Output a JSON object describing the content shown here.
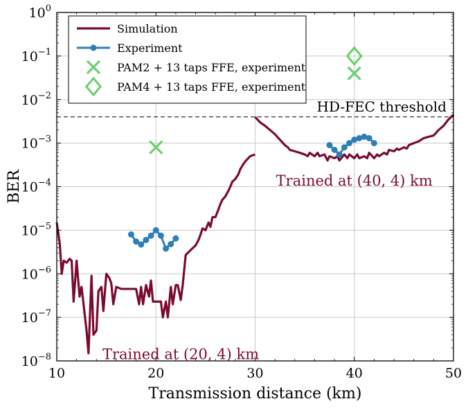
{
  "chart_data": {
    "type": "line",
    "xlabel": "Transmission distance (km)",
    "ylabel": "BER",
    "xlim": [
      10,
      50
    ],
    "ylim_exponent": [
      -8,
      0
    ],
    "yscale": "log",
    "grid": true,
    "x_ticks": [
      10,
      20,
      30,
      40,
      50
    ],
    "y_tick_exponents": [
      -8,
      -7,
      -6,
      -5,
      -4,
      -3,
      -2,
      -1,
      0
    ],
    "y_tick_base": "10",
    "legend_position": "top-left",
    "colors": {
      "simulation": "#7a0a33",
      "experiment": "#2e7fb8",
      "pam": "#6ccf6c",
      "threshold": "#000000"
    },
    "series": [
      {
        "name": "Simulation",
        "segment": 1,
        "x": [
          10,
          10.3,
          10.5,
          10.7,
          11.0,
          11.3,
          11.5,
          11.7,
          12.0,
          12.3,
          12.5,
          12.7,
          13.0,
          13.2,
          13.5,
          13.7,
          14.0,
          14.2,
          14.5,
          14.7,
          15.0,
          15.3,
          15.5,
          15.7,
          16.0,
          16.5,
          17.0,
          17.5,
          18.0,
          18.3,
          18.5,
          18.7,
          19.0,
          19.3,
          19.5,
          19.7,
          20.0,
          20.5,
          20.7,
          21.0,
          21.2,
          21.5,
          21.7,
          22.0,
          22.2,
          22.5,
          22.7,
          23.0,
          23.5,
          24.0,
          24.3,
          24.5,
          24.7,
          25.0,
          25.3,
          25.5,
          25.7,
          26.0,
          26.3,
          26.5,
          26.7,
          27.0,
          27.3,
          27.5,
          27.7,
          28.0,
          28.3,
          28.5,
          28.7,
          29.0,
          29.5,
          30.0
        ],
        "y": [
          1.5e-05,
          5e-06,
          1e-06,
          2e-06,
          1.8e-06,
          2.2e-06,
          2e-06,
          2.3e-07,
          2e-06,
          3e-07,
          5e-07,
          2e-07,
          5e-08,
          1.5e-08,
          9e-07,
          4e-08,
          5e-08,
          4e-07,
          5e-07,
          1.4e-07,
          1e-06,
          8e-07,
          6e-07,
          2e-07,
          5e-07,
          4.5e-07,
          4.5e-07,
          4.5e-07,
          4.5e-07,
          2e-07,
          5e-07,
          2e-07,
          5.5e-07,
          3e-07,
          7e-07,
          2.3e-07,
          2.3e-07,
          2.3e-07,
          1e-07,
          2.3e-07,
          1e-07,
          5e-07,
          2e-07,
          5.5e-07,
          5.5e-07,
          2.5e-07,
          5.5e-07,
          2.7e-06,
          3.5e-06,
          4.5e-06,
          6e-06,
          8e-06,
          1.1e-05,
          1e-05,
          1.5e-05,
          1.2e-05,
          2e-05,
          2e-05,
          3e-05,
          4e-05,
          5e-05,
          6e-05,
          8e-05,
          0.0001,
          0.00013,
          0.00015,
          0.00019,
          0.00025,
          0.0003,
          0.00038,
          0.0005,
          0.00055
        ]
      },
      {
        "name": "Simulation",
        "segment": 2,
        "x": [
          30.0,
          30.5,
          31.0,
          31.5,
          32.0,
          32.5,
          33.0,
          33.3,
          33.5,
          34.0,
          34.5,
          35.0,
          35.3,
          35.5,
          36.0,
          36.3,
          36.5,
          37.0,
          37.3,
          37.5,
          38.0,
          38.3,
          38.5,
          39.0,
          39.3,
          39.5,
          40.0,
          40.3,
          40.5,
          41.0,
          41.3,
          41.5,
          42.0,
          42.3,
          42.5,
          43.0,
          43.3,
          43.5,
          44.0,
          44.3,
          44.5,
          45.0,
          45.3,
          45.5,
          46.0,
          46.5,
          47.0,
          47.5,
          48.0,
          48.5,
          49.0,
          49.5,
          50.0
        ],
        "y": [
          0.004,
          0.003,
          0.0025,
          0.002,
          0.0016,
          0.0012,
          0.0009,
          0.0008,
          0.0007,
          0.00065,
          0.0006,
          0.00055,
          0.0005,
          0.0006,
          0.0005,
          0.0006,
          0.0005,
          0.00055,
          0.0004,
          0.0005,
          0.00045,
          0.0005,
          0.0004,
          0.00055,
          0.00045,
          0.00055,
          0.00045,
          0.00055,
          0.00045,
          0.0005,
          0.00045,
          0.0006,
          0.00045,
          0.00055,
          0.0005,
          0.0006,
          0.00055,
          0.0007,
          0.00065,
          0.00075,
          0.0007,
          0.0008,
          0.00075,
          0.0009,
          0.001,
          0.0011,
          0.0013,
          0.0014,
          0.0015,
          0.002,
          0.0025,
          0.0035,
          0.0045
        ]
      },
      {
        "name": "Experiment",
        "segment": 1,
        "x": [
          17.5,
          18.0,
          18.5,
          19.0,
          19.5,
          20.0,
          20.5,
          21.0,
          21.5,
          22.0
        ],
        "y": [
          8e-06,
          5.5e-06,
          4.7e-06,
          6e-06,
          7.5e-06,
          1e-05,
          7.5e-06,
          3.8e-06,
          4.8e-06,
          6.5e-06
        ]
      },
      {
        "name": "Experiment",
        "segment": 2,
        "x": [
          37.5,
          38.0,
          38.5,
          39.0,
          39.5,
          40.0,
          40.5,
          41.0,
          41.5,
          42.0
        ],
        "y": [
          0.0009,
          0.0007,
          0.00055,
          0.0008,
          0.001,
          0.0012,
          0.0013,
          0.0014,
          0.0013,
          0.001
        ]
      },
      {
        "name": "PAM2 + 13 taps FFE, experiment",
        "marker": "x",
        "x": [
          20,
          40
        ],
        "y": [
          0.0008,
          0.04
        ]
      },
      {
        "name": "PAM4 + 13 taps FFE, experiment",
        "marker": "diamond",
        "x": [
          40
        ],
        "y": [
          0.1
        ]
      }
    ],
    "threshold": {
      "label": "HD-FEC threshold",
      "value": 0.004
    },
    "annotations": [
      {
        "text_prefix": "Trained at ",
        "math": "(20, 4)",
        "unit": " km",
        "x": 22.5,
        "y": 1.1e-08
      },
      {
        "text_prefix": "Trained at ",
        "math": "(40, 4)",
        "unit": " km",
        "x": 40.0,
        "y": 0.000105
      }
    ]
  }
}
